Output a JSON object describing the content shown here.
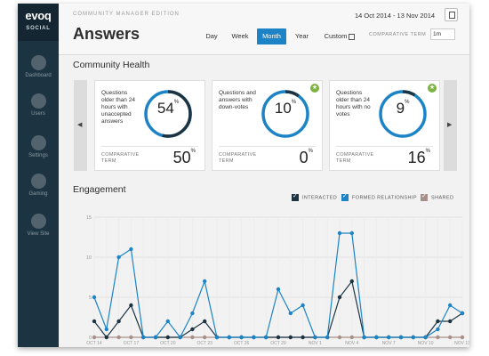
{
  "sidebar": {
    "logo": "evoq",
    "logo_sub": "SOCIAL",
    "items": [
      {
        "label": "Dashboard",
        "icon": "dashboard-icon"
      },
      {
        "label": "Users",
        "icon": "users-icon"
      },
      {
        "label": "Settings",
        "icon": "gear-icon"
      },
      {
        "label": "Gaming",
        "icon": "trophy-icon"
      },
      {
        "label": "View Site",
        "icon": "back-arrow-icon"
      }
    ]
  },
  "header": {
    "edition": "COMMUNITY MANAGER EDITION",
    "title": "Answers",
    "date_range": "14 Oct 2014 - 13 Nov 2014",
    "tabs": [
      "Day",
      "Week",
      "Month",
      "Year",
      "Custom"
    ],
    "active_tab": "Month",
    "comparative_label": "COMPARATIVE TERM",
    "comparative_value": "1m"
  },
  "health": {
    "title": "Community Health",
    "cards": [
      {
        "desc": "Questions older than 24 hours with unaccepted answers",
        "value": "54",
        "comparative_label": "COMPARATIVE TERM",
        "comparative_value": "50",
        "badge": false,
        "fill": 0.54
      },
      {
        "desc": "Questions and answers with down-votes",
        "value": "10",
        "comparative_label": "COMPARATIVE TERM",
        "comparative_value": "0",
        "badge": true,
        "fill": 0.1
      },
      {
        "desc": "Questions older than 24 hours with no votes",
        "value": "9",
        "comparative_label": "COMPARATIVE TERM",
        "comparative_value": "16",
        "badge": true,
        "fill": 0.09
      }
    ],
    "percent": "%"
  },
  "engagement": {
    "title": "Engagement",
    "legend": [
      {
        "label": "INTERACTED",
        "color": "#1c3442"
      },
      {
        "label": "FORMED RELATIONSHIP",
        "color": "#1c84c6"
      },
      {
        "label": "SHARED",
        "color": "#a89088"
      }
    ]
  },
  "chart_data": {
    "type": "line",
    "title": "",
    "xlabel": "",
    "ylabel": "",
    "ylim": [
      0,
      15
    ],
    "yticks": [
      0,
      5,
      10,
      15
    ],
    "x": [
      "OCT 14",
      "OCT 15",
      "OCT 16",
      "OCT 17",
      "OCT 18",
      "OCT 19",
      "OCT 20",
      "OCT 21",
      "OCT 22",
      "OCT 23",
      "OCT 24",
      "OCT 25",
      "OCT 26",
      "OCT 27",
      "OCT 28",
      "OCT 29",
      "OCT 30",
      "OCT 31",
      "NOV 1",
      "NOV 2",
      "NOV 3",
      "NOV 4",
      "NOV 5",
      "NOV 6",
      "NOV 7",
      "NOV 8",
      "NOV 9",
      "NOV 10",
      "NOV 11",
      "NOV 12",
      "NOV 13"
    ],
    "xtick_labels": [
      "OCT 14",
      "OCT 17",
      "OCT 20",
      "OCT 23",
      "OCT 26",
      "OCT 29",
      "NOV 1",
      "NOV 4",
      "NOV 7",
      "NOV 10",
      "NOV 13"
    ],
    "series": [
      {
        "name": "FORMED RELATIONSHIP",
        "color": "#1c84c6",
        "values": [
          5,
          1,
          10,
          11,
          0,
          0,
          2,
          0,
          3,
          7,
          0,
          0,
          0,
          0,
          0,
          6,
          3,
          4,
          0,
          0,
          13,
          13,
          0,
          0,
          0,
          0,
          0,
          0,
          1,
          4,
          3
        ]
      },
      {
        "name": "INTERACTED",
        "color": "#1c3442",
        "values": [
          2,
          0,
          2,
          4,
          0,
          0,
          0,
          0,
          1,
          2,
          0,
          0,
          0,
          0,
          0,
          0,
          0,
          0,
          0,
          0,
          5,
          7,
          0,
          0,
          0,
          0,
          0,
          0,
          2,
          2,
          3
        ]
      },
      {
        "name": "SHARED",
        "color": "#a89088",
        "values": [
          0,
          0,
          0,
          0,
          0,
          0,
          0,
          0,
          0,
          0,
          0,
          0,
          0,
          0,
          0,
          0,
          0,
          0,
          0,
          0,
          0,
          0,
          0,
          0,
          0,
          0,
          0,
          0,
          0,
          0,
          0
        ]
      }
    ],
    "grid": true,
    "legend": "top-right"
  }
}
